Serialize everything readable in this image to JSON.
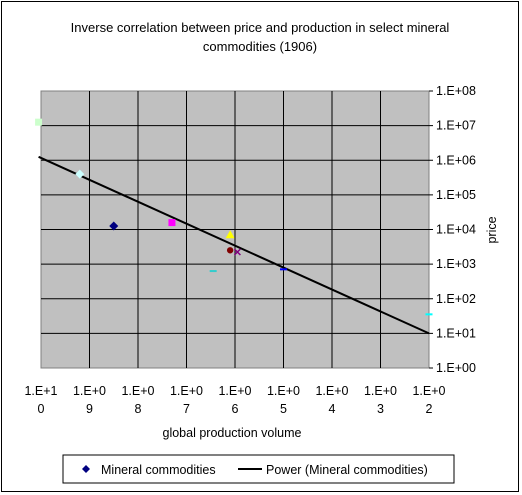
{
  "chart_data": {
    "type": "scatter",
    "title_line1": "Inverse correlation between price and production in select mineral",
    "title_line2": "commodities (1906)",
    "xlabel": "global production volume",
    "ylabel": "price",
    "x_tick_labels": [
      {
        "top": "1.E+1",
        "bottom": "0"
      },
      {
        "top": "1.E+0",
        "bottom": "9"
      },
      {
        "top": "1.E+0",
        "bottom": "8"
      },
      {
        "top": "1.E+0",
        "bottom": "7"
      },
      {
        "top": "1.E+0",
        "bottom": "6"
      },
      {
        "top": "1.E+0",
        "bottom": "5"
      },
      {
        "top": "1.E+0",
        "bottom": "4"
      },
      {
        "top": "1.E+0",
        "bottom": "3"
      },
      {
        "top": "1.E+0",
        "bottom": "2"
      }
    ],
    "x_axis_log_exponents": [
      10,
      9,
      8,
      7,
      6,
      5,
      4,
      3,
      2
    ],
    "y_tick_labels": [
      "1.E+08",
      "1.E+07",
      "1.E+06",
      "1.E+05",
      "1.E+04",
      "1.E+03",
      "1.E+02",
      "1.E+01",
      "1.E+00"
    ],
    "y_axis_log_exponents": [
      8,
      7,
      6,
      5,
      4,
      3,
      2,
      1,
      0
    ],
    "x_scale": "log",
    "y_scale": "log",
    "grid": true,
    "plot_background": "#c0c0c0",
    "legend_position": "bottom",
    "legend": {
      "series_label": "Mineral commodities",
      "trend_label": "Power (Mineral commodities)"
    },
    "points": [
      {
        "x_log": 10.05,
        "y_log": 7.1,
        "marker": "square",
        "color": "#ccffcc"
      },
      {
        "x_log": 9.2,
        "y_log": 5.6,
        "marker": "diamond",
        "color": "#ccffff"
      },
      {
        "x_log": 8.5,
        "y_log": 4.1,
        "marker": "diamond",
        "color": "#000080"
      },
      {
        "x_log": 7.3,
        "y_log": 4.2,
        "marker": "square",
        "color": "#ff00ff"
      },
      {
        "x_log": 6.45,
        "y_log": 2.8,
        "marker": "dash",
        "color": "#33cccc"
      },
      {
        "x_log": 6.1,
        "y_log": 3.85,
        "marker": "triangle",
        "color": "#ffff00"
      },
      {
        "x_log": 6.1,
        "y_log": 3.4,
        "marker": "circle",
        "color": "#800000"
      },
      {
        "x_log": 5.95,
        "y_log": 3.35,
        "marker": "x",
        "color": "#800080"
      },
      {
        "x_log": 5.0,
        "y_log": 2.85,
        "marker": "dash",
        "color": "#0000ff"
      },
      {
        "x_log": 2.0,
        "y_log": 1.55,
        "marker": "dash",
        "color": "#00ffff"
      }
    ],
    "trendline": {
      "type": "power",
      "color": "#000000",
      "x_log_range": [
        2.0,
        10.05
      ],
      "y_log_range": [
        1.0,
        6.1
      ]
    }
  }
}
